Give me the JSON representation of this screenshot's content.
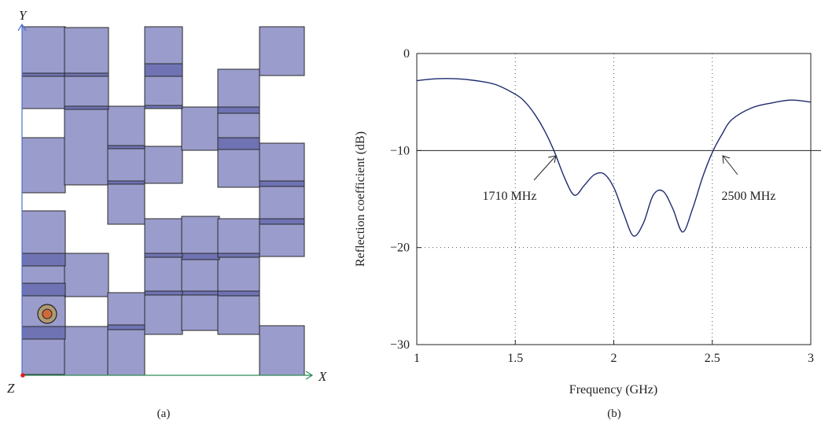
{
  "panel_a": {
    "caption": "(a)",
    "axis_labels": {
      "y": "Y",
      "x": "X",
      "z": "Z"
    },
    "colors": {
      "patch": "#9a9ccc",
      "overlap": "#6f73b4",
      "edge": "#2a2a2a",
      "x_axis": "#2e8b57",
      "y_axis": "#4a6fd0",
      "feed_outer": "#b09a74",
      "feed_inner": "#d2693a",
      "origin": "#e0201a"
    },
    "structure": "pixelated patch antenna layout with coaxial feed"
  },
  "panel_b": {
    "caption": "(b)",
    "colors": {
      "curve": "#1f2a6e",
      "threshold": "#222222",
      "grid": "#555555"
    }
  },
  "chart_data": {
    "type": "line",
    "xlabel": "Frequency (GHz)",
    "ylabel": "Reflection coefficient (dB)",
    "xlim": [
      1,
      3
    ],
    "ylim": [
      -30,
      0
    ],
    "x_ticks": [
      "1",
      "1.5",
      "2",
      "2.5",
      "3"
    ],
    "y_ticks": [
      "0",
      "−10",
      "−20",
      "−30"
    ],
    "grid": "dotted at x = 1.5, 2, 2.5 and y = −20",
    "threshold_line": -10,
    "series": [
      {
        "x": [
          1.0,
          1.1,
          1.2,
          1.3,
          1.4,
          1.5,
          1.55,
          1.6,
          1.65,
          1.7,
          1.75,
          1.8,
          1.85,
          1.9,
          1.95,
          2.0,
          2.05,
          2.1,
          2.15,
          2.2,
          2.25,
          2.3,
          2.35,
          2.4,
          2.45,
          2.5,
          2.55,
          2.6,
          2.7,
          2.8,
          2.9,
          3.0
        ],
        "y": [
          -2.8,
          -2.6,
          -2.6,
          -2.8,
          -3.2,
          -4.2,
          -5.0,
          -6.3,
          -8.0,
          -10.2,
          -12.8,
          -14.6,
          -13.6,
          -12.5,
          -12.4,
          -13.8,
          -16.5,
          -18.8,
          -17.5,
          -14.6,
          -14.2,
          -16.0,
          -18.4,
          -16.0,
          -12.8,
          -10.2,
          -8.3,
          -6.8,
          -5.6,
          -5.1,
          -4.8,
          -5.0
        ]
      }
    ],
    "annotations": [
      {
        "text": "1710 MHz",
        "x": 1.71,
        "y": -10
      },
      {
        "text": "2500 MHz",
        "x": 2.5,
        "y": -10
      }
    ]
  }
}
